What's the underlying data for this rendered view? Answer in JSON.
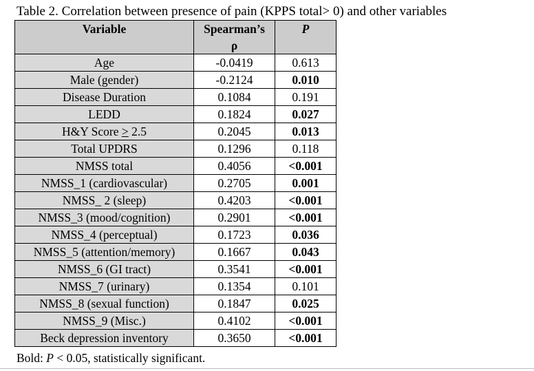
{
  "caption": "Table 2. Correlation between presence of pain (KPPS total> 0) and other variables",
  "headers": {
    "variable": "Variable",
    "rho_line1": "Spearman’s",
    "rho_line2": "ρ",
    "p": "P"
  },
  "rows": [
    {
      "variable": "Age",
      "rho": "-0.0419",
      "p": "0.613",
      "significant": false
    },
    {
      "variable": "Male (gender)",
      "rho": "-0.2124",
      "p": "0.010",
      "significant": true
    },
    {
      "variable": "Disease Duration",
      "rho": "0.1084",
      "p": "0.191",
      "significant": false
    },
    {
      "variable": "LEDD",
      "rho": "0.1824",
      "p": "0.027",
      "significant": true
    },
    {
      "variable": "H&Y Score > 2.5",
      "rho": "0.2045",
      "p": "0.013",
      "significant": true
    },
    {
      "variable": "Total UPDRS",
      "rho": "0.1296",
      "p": "0.118",
      "significant": false
    },
    {
      "variable": "NMSS total",
      "rho": "0.4056",
      "p": "<0.001",
      "significant": true
    },
    {
      "variable": "NMSS_1 (cardiovascular)",
      "rho": "0.2705",
      "p": "0.001",
      "significant": true
    },
    {
      "variable": "NMSS_ 2 (sleep)",
      "rho": "0.4203",
      "p": "<0.001",
      "significant": true
    },
    {
      "variable": "NMSS_3 (mood/cognition)",
      "rho": "0.2901",
      "p": "<0.001",
      "significant": true
    },
    {
      "variable": "NMSS_4 (perceptual)",
      "rho": "0.1723",
      "p": "0.036",
      "significant": true
    },
    {
      "variable": "NMSS_5 (attention/memory)",
      "rho": "0.1667",
      "p": "0.043",
      "significant": true
    },
    {
      "variable": "NMSS_6 (GI tract)",
      "rho": "0.3541",
      "p": "<0.001",
      "significant": true
    },
    {
      "variable": "NMSS_7 (urinary)",
      "rho": "0.1354",
      "p": "0.101",
      "significant": false
    },
    {
      "variable": "NMSS_8 (sexual function)",
      "rho": "0.1847",
      "p": "0.025",
      "significant": true
    },
    {
      "variable": "NMSS_9 (Misc.)",
      "rho": "0.4102",
      "p": "<0.001",
      "significant": true
    },
    {
      "variable": "Beck depression inventory",
      "rho": "0.3650",
      "p": "<0.001",
      "significant": true
    }
  ],
  "footnote": {
    "bold_label": "Bold:",
    "p_symbol": "P",
    "text": " < 0.05, statistically significant."
  }
}
